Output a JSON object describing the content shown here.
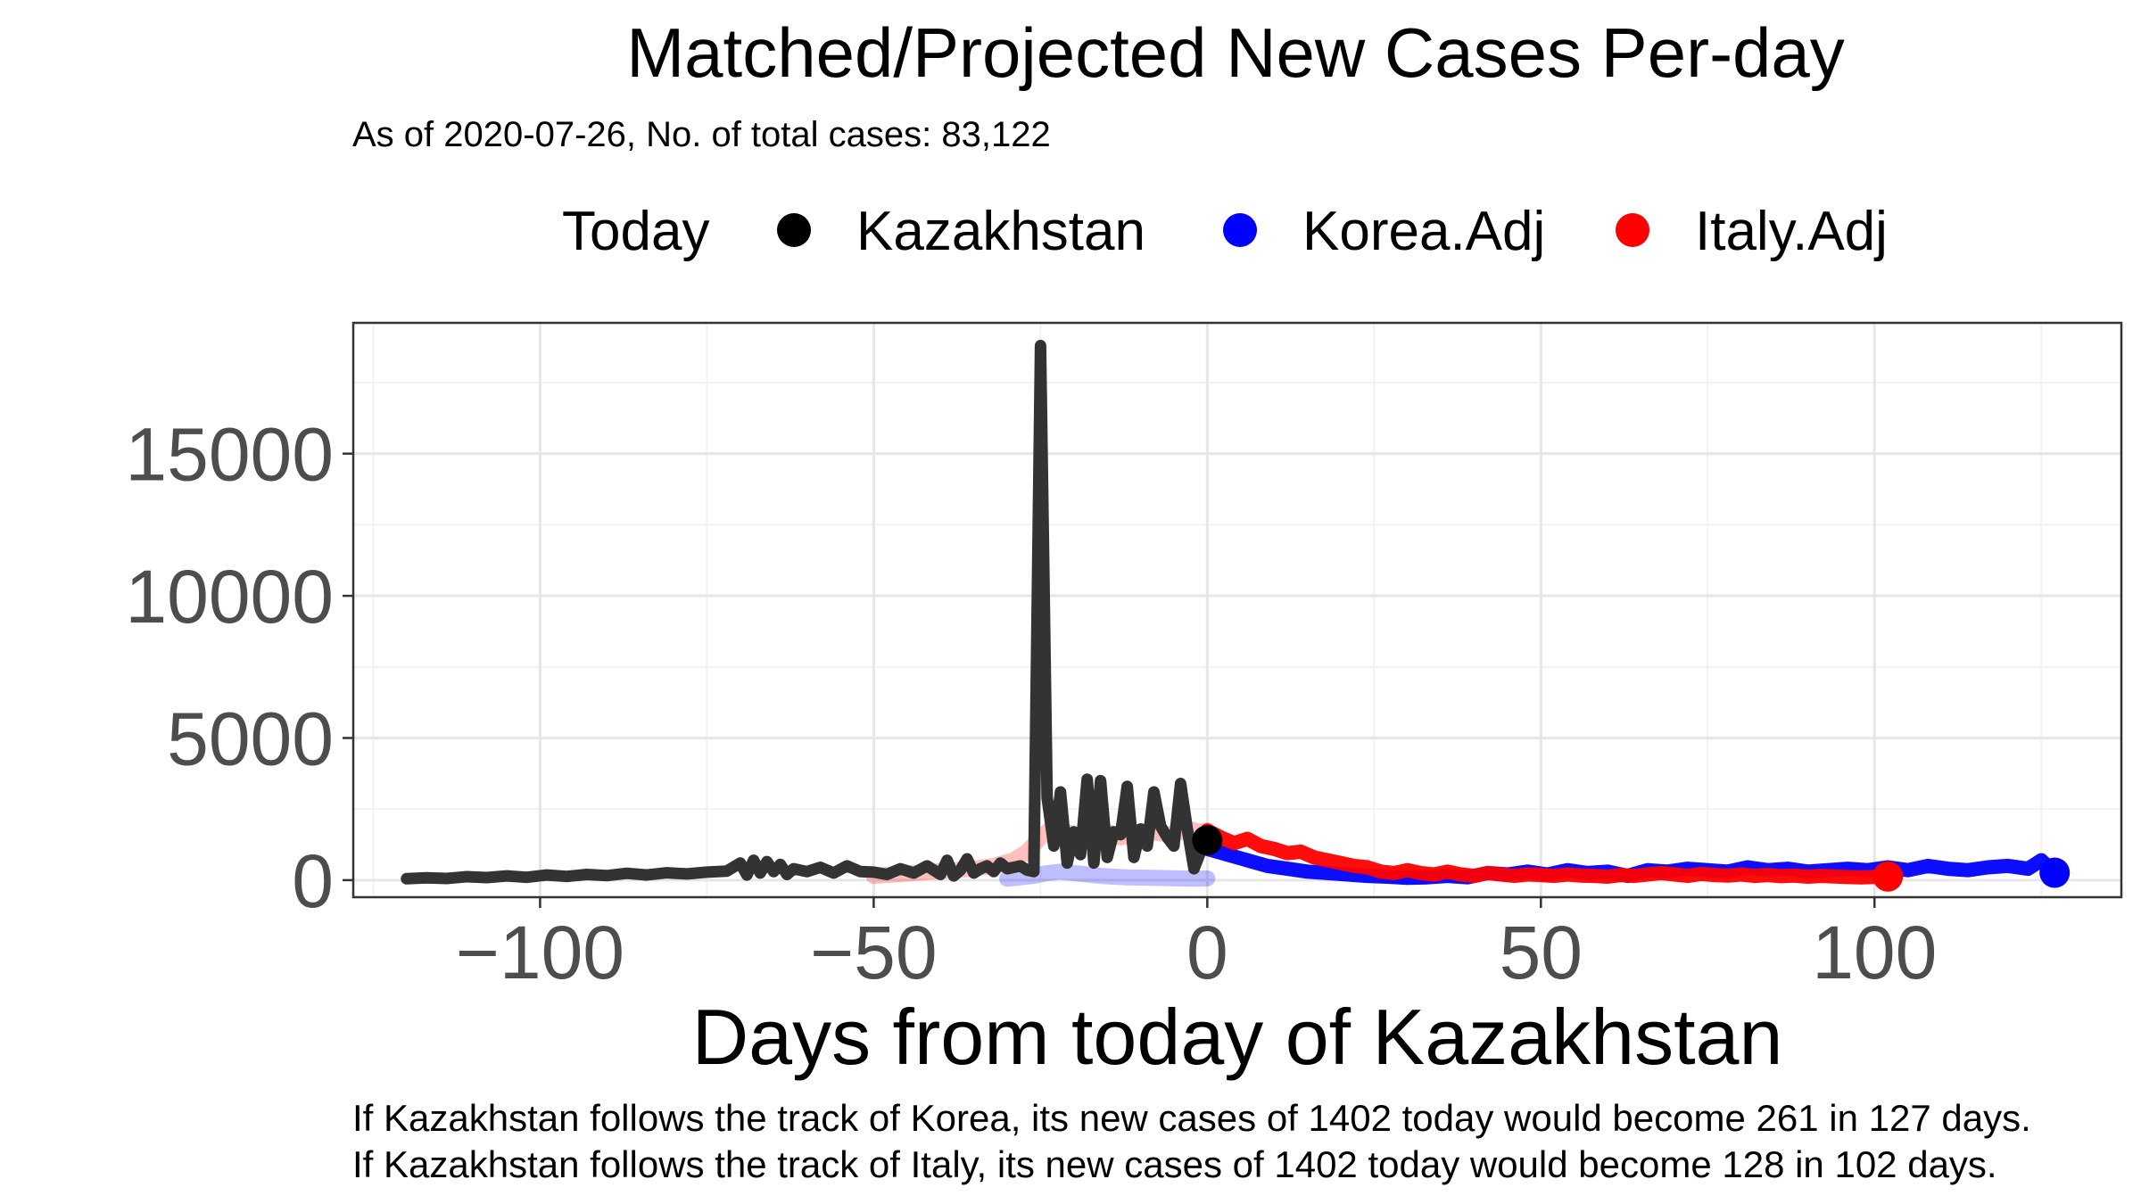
{
  "chart_data": {
    "type": "line",
    "title": "Matched/Projected New Cases Per-day",
    "subtitle": "As of 2020-07-26, No. of total cases: 83,122",
    "xlabel": "Days from today of Kazakhstan",
    "ylabel": "",
    "xlim": [
      -128,
      137
    ],
    "ylim": [
      -600,
      19600
    ],
    "x_ticks": [
      -100,
      -50,
      0,
      50,
      100
    ],
    "y_ticks": [
      0,
      5000,
      10000,
      15000
    ],
    "grid": true,
    "legend": {
      "position": "top",
      "title": "Today",
      "entries": [
        {
          "label": "Kazakhstan",
          "color": "#000000"
        },
        {
          "label": "Korea.Adj",
          "color": "#0000ff"
        },
        {
          "label": "Italy.Adj",
          "color": "#ff0000"
        }
      ]
    },
    "today_points": [
      {
        "series": "Kazakhstan",
        "x": 0,
        "y": 1402,
        "color": "#000000"
      },
      {
        "series": "Korea.Adj",
        "x": 127,
        "y": 261,
        "color": "#0000ff"
      },
      {
        "series": "Italy.Adj",
        "x": 102,
        "y": 128,
        "color": "#ff0000"
      }
    ],
    "series": [
      {
        "name": "Kazakhstan",
        "color": "#333333",
        "x": [
          -120,
          -117,
          -114,
          -111,
          -108,
          -105,
          -102,
          -99,
          -96,
          -93,
          -90,
          -87,
          -84,
          -81,
          -78,
          -75,
          -72,
          -70,
          -69,
          -68,
          -67,
          -66,
          -65,
          -64,
          -63,
          -62,
          -61,
          -60,
          -58,
          -56,
          -54,
          -52,
          -50,
          -48,
          -46,
          -44,
          -42,
          -40,
          -39,
          -38,
          -37,
          -36,
          -35,
          -34,
          -33,
          -32,
          -31,
          -30,
          -29,
          -28,
          -27,
          -26,
          -25,
          -24,
          -23,
          -22,
          -21,
          -20,
          -19,
          -18,
          -17,
          -16,
          -15,
          -14,
          -13,
          -12,
          -11,
          -10,
          -9,
          -8,
          -7,
          -6,
          -5,
          -4,
          -3,
          -2,
          -1,
          0
        ],
        "y": [
          50,
          80,
          60,
          120,
          90,
          150,
          100,
          180,
          130,
          200,
          160,
          240,
          180,
          260,
          220,
          280,
          320,
          600,
          180,
          700,
          250,
          650,
          300,
          550,
          200,
          400,
          350,
          300,
          450,
          250,
          500,
          300,
          280,
          200,
          400,
          250,
          500,
          200,
          700,
          150,
          350,
          750,
          250,
          400,
          500,
          300,
          600,
          400,
          450,
          500,
          350,
          300,
          18800,
          2900,
          1200,
          3100,
          600,
          1700,
          900,
          3550,
          600,
          3500,
          800,
          1700,
          1600,
          3300,
          800,
          1800,
          1200,
          3100,
          1900,
          1500,
          1200,
          3400,
          1800,
          400,
          1000,
          1402
        ]
      },
      {
        "name": "Korea.Adj",
        "color": "#0000ff",
        "x": [
          0,
          3,
          6,
          9,
          12,
          15,
          18,
          21,
          24,
          27,
          30,
          33,
          36,
          39,
          42,
          45,
          48,
          51,
          54,
          57,
          60,
          63,
          66,
          69,
          72,
          75,
          78,
          81,
          84,
          87,
          90,
          93,
          96,
          99,
          102,
          105,
          108,
          111,
          114,
          117,
          120,
          123,
          125,
          127
        ],
        "y": [
          1100,
          900,
          700,
          500,
          400,
          300,
          250,
          200,
          150,
          120,
          80,
          100,
          150,
          100,
          250,
          200,
          300,
          200,
          350,
          250,
          300,
          150,
          350,
          300,
          400,
          350,
          300,
          450,
          350,
          400,
          300,
          350,
          400,
          350,
          450,
          350,
          500,
          400,
          350,
          450,
          500,
          400,
          700,
          261
        ]
      },
      {
        "name": "Italy.Adj",
        "color": "#ff0000",
        "x": [
          0,
          2,
          4,
          6,
          8,
          10,
          12,
          14,
          16,
          18,
          20,
          22,
          24,
          26,
          28,
          30,
          32,
          34,
          36,
          38,
          40,
          42,
          44,
          46,
          48,
          50,
          52,
          54,
          56,
          58,
          60,
          62,
          64,
          66,
          68,
          70,
          72,
          74,
          76,
          78,
          80,
          82,
          84,
          86,
          88,
          90,
          92,
          94,
          96,
          98,
          102
        ],
        "y": [
          1750,
          1500,
          1300,
          1450,
          1200,
          1100,
          950,
          1000,
          800,
          700,
          600,
          500,
          450,
          300,
          250,
          350,
          250,
          200,
          300,
          200,
          150,
          250,
          200,
          150,
          200,
          180,
          150,
          200,
          160,
          150,
          120,
          180,
          150,
          200,
          250,
          200,
          150,
          220,
          180,
          160,
          200,
          150,
          180,
          140,
          160,
          120,
          150,
          130,
          110,
          100,
          128
        ]
      },
      {
        "name": "Korea.Adj matched",
        "color": "#0000ff",
        "x": [
          -30,
          -28,
          -26,
          -24,
          -22,
          -20,
          -18,
          -16,
          -14,
          -12,
          -10,
          -8,
          -6,
          -4,
          -2,
          0
        ],
        "y": [
          50,
          100,
          150,
          250,
          300,
          250,
          200,
          150,
          120,
          100,
          90,
          80,
          70,
          60,
          50,
          60
        ]
      },
      {
        "name": "Italy.Adj matched",
        "color": "#ff0000",
        "x": [
          -50,
          -47,
          -44,
          -41,
          -38,
          -35,
          -32,
          -29,
          -27,
          -25,
          -23,
          -21,
          -19,
          -17,
          -15,
          -13,
          -11,
          -9,
          -7,
          -5,
          -3,
          -1,
          0
        ],
        "y": [
          150,
          200,
          250,
          300,
          350,
          400,
          500,
          700,
          1000,
          1500,
          1900,
          1700,
          1400,
          1800,
          1700,
          1500,
          1600,
          1700,
          1650,
          1600,
          1800,
          1700,
          1750
        ]
      }
    ]
  },
  "captions": [
    "If Kazakhstan follows the track of Korea, its new cases of 1402 today would become 261 in 127 days.",
    "If Kazakhstan follows the track of Italy, its new cases of 1402 today would become 128 in 102 days."
  ]
}
